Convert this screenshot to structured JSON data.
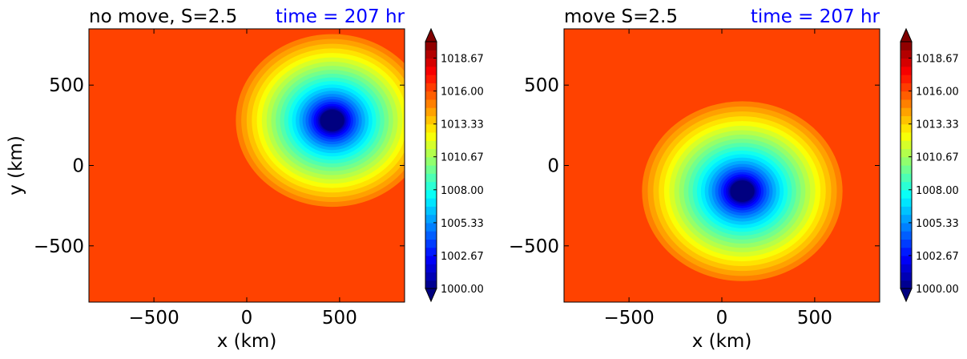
{
  "chart_data": [
    {
      "type": "contour",
      "title_left": "no move, S=2.5",
      "title_right": "time = 207 hr",
      "xlabel": "x (km)",
      "ylabel": "y (km)",
      "xlim": [
        -850,
        850
      ],
      "ylim": [
        -850,
        850
      ],
      "xticks": [
        -500,
        0,
        500
      ],
      "yticks": [
        -500,
        0,
        500
      ],
      "xtick_labels": [
        "−500",
        "0",
        "500"
      ],
      "ytick_labels": [
        "−500",
        "0",
        "500"
      ],
      "colorbar": {
        "min": 1000.0,
        "max": 1020.0,
        "tick_values": [
          1000.0,
          1002.67,
          1005.33,
          1008.0,
          1010.67,
          1013.33,
          1016.0,
          1018.67
        ],
        "tick_labels": [
          "1000.00",
          "1002.67",
          "1005.33",
          "1008.00",
          "1010.67",
          "1013.33",
          "1016.00",
          "1018.67"
        ]
      },
      "field": {
        "background_value": 1016.2,
        "center": [
          460,
          280
        ],
        "min_value": 1000.0,
        "outer_radius_km": 360
      }
    },
    {
      "type": "contour",
      "title_left": "move S=2.5",
      "title_right": "time = 207 hr",
      "xlabel": "x (km)",
      "ylabel": "",
      "xlim": [
        -850,
        850
      ],
      "ylim": [
        -850,
        850
      ],
      "xticks": [
        -500,
        0,
        500
      ],
      "yticks": [
        -500,
        0,
        500
      ],
      "xtick_labels": [
        "−500",
        "0",
        "500"
      ],
      "ytick_labels": [
        "−500",
        "0",
        "500"
      ],
      "colorbar": {
        "min": 1000.0,
        "max": 1020.0,
        "tick_values": [
          1000.0,
          1002.67,
          1005.33,
          1008.0,
          1010.67,
          1013.33,
          1016.0,
          1018.67
        ],
        "tick_labels": [
          "1000.00",
          "1002.67",
          "1005.33",
          "1008.00",
          "1010.67",
          "1013.33",
          "1016.00",
          "1018.67"
        ]
      },
      "field": {
        "background_value": 1016.2,
        "center": [
          110,
          -160
        ],
        "min_value": 1000.0,
        "outer_radius_km": 380
      }
    }
  ]
}
